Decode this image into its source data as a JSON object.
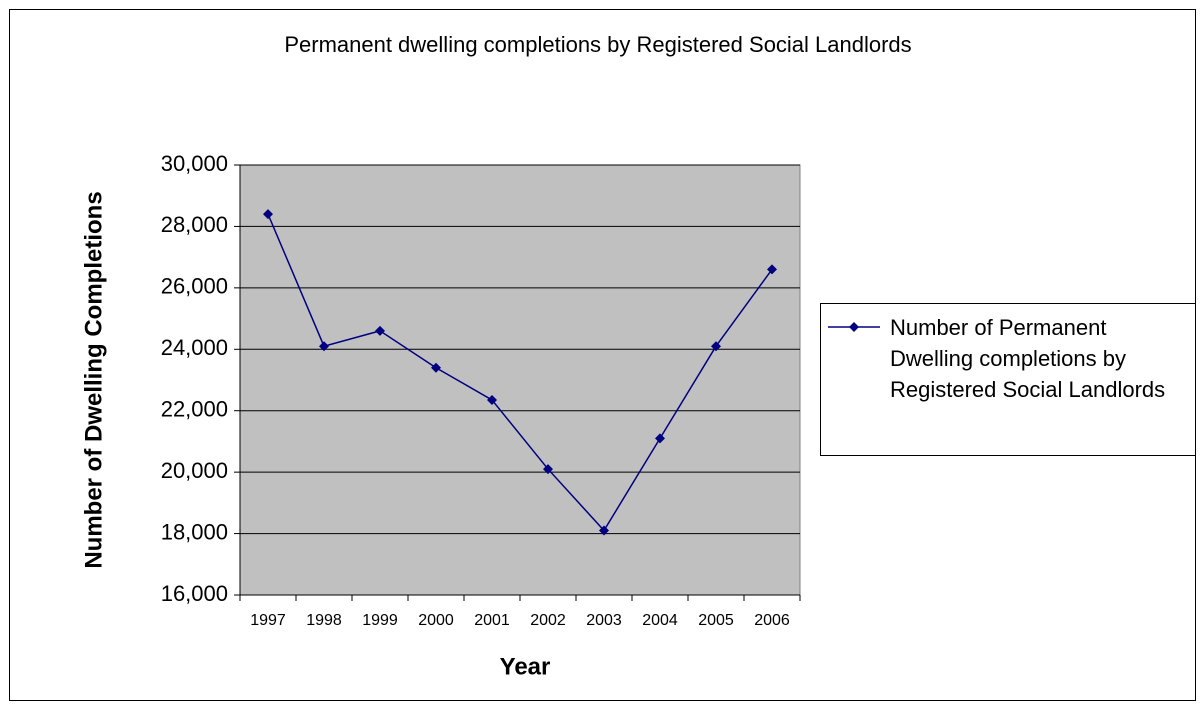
{
  "chart_data": {
    "type": "line",
    "title": "Permanent dwelling completions by Registered Social Landlords",
    "x_label": "Year",
    "y_label": "Number of Dwelling Completions",
    "categories": [
      "1997",
      "1998",
      "1999",
      "2000",
      "2001",
      "2002",
      "2003",
      "2004",
      "2005",
      "2006"
    ],
    "series": [
      {
        "name": "Number of Permanent Dwelling completions by Registered Social Landlords",
        "color": "#000080",
        "values": [
          28400,
          24100,
          24600,
          23400,
          22350,
          20100,
          18100,
          21100,
          24100,
          26600
        ]
      }
    ],
    "ylim": [
      16000,
      30000
    ],
    "yticks": [
      {
        "value": 16000,
        "label": "16,000"
      },
      {
        "value": 18000,
        "label": "18,000"
      },
      {
        "value": 20000,
        "label": "20,000"
      },
      {
        "value": 22000,
        "label": "22,000"
      },
      {
        "value": 24000,
        "label": "24,000"
      },
      {
        "value": 26000,
        "label": "26,000"
      },
      {
        "value": 28000,
        "label": "28,000"
      },
      {
        "value": 30000,
        "label": "30,000"
      }
    ],
    "grid": true,
    "legend": "right",
    "plot_background": "#c0c0c0"
  }
}
